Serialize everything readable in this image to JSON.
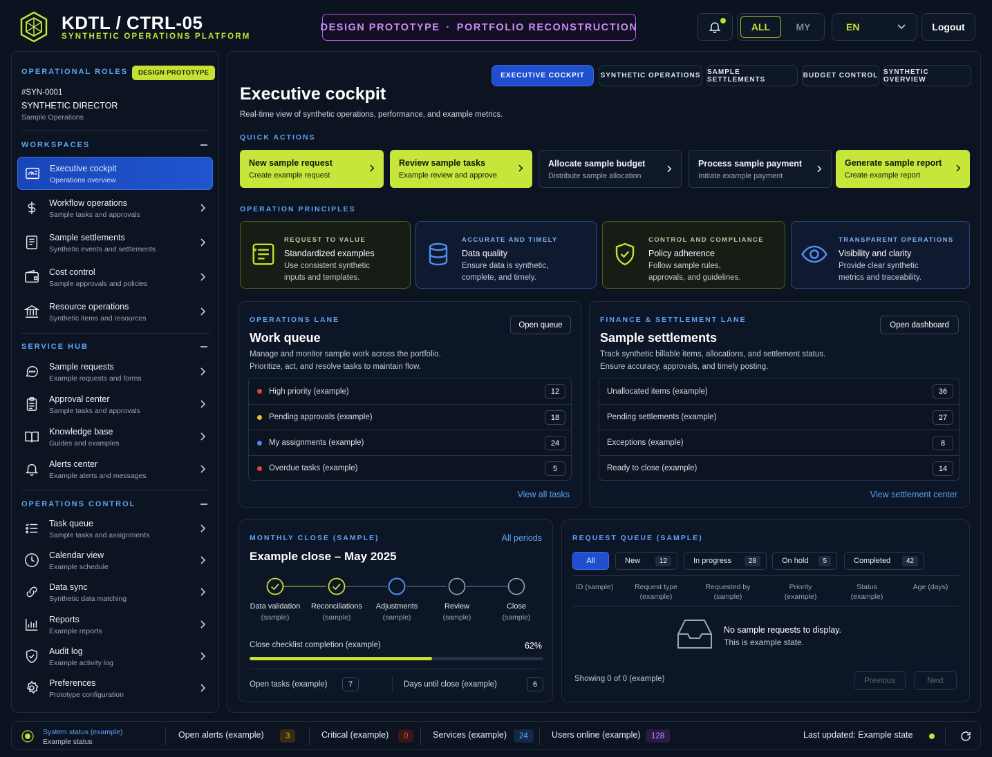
{
  "header": {
    "title": "KDTL / CTRL-05",
    "subtitle": "SYNTHETIC OPERATIONS PLATFORM",
    "banner_left": "DESIGN PROTOTYPE",
    "banner_sep": "·",
    "banner_right": "PORTFOLIO RECONSTRUCTION",
    "scope_all": "ALL",
    "scope_my": "MY",
    "language": "EN",
    "logout": "Logout"
  },
  "sidebar": {
    "roles_title": "OPERATIONAL ROLES",
    "badge": "DESIGN PROTOTYPE",
    "user_id": "#SYN-0001",
    "user_role": "SYNTHETIC DIRECTOR",
    "user_dept": "Sample Operations",
    "workspaces_title": "WORKSPACES",
    "workspaces": [
      {
        "label": "Executive cockpit",
        "sub": "Operations overview",
        "icon": "dashboard-icon"
      },
      {
        "label": "Workflow operations",
        "sub": "Sample tasks and approvals",
        "icon": "dollar-icon"
      },
      {
        "label": "Sample settlements",
        "sub": "Synthetic events and settlements",
        "icon": "document-icon"
      },
      {
        "label": "Cost control",
        "sub": "Sample approvals and policies",
        "icon": "wallet-icon"
      },
      {
        "label": "Resource operations",
        "sub": "Synthetic items and resources",
        "icon": "bank-icon"
      }
    ],
    "service_title": "SERVICE HUB",
    "service": [
      {
        "label": "Sample requests",
        "sub": "Example requests and forms",
        "icon": "chat-icon"
      },
      {
        "label": "Approval center",
        "sub": "Sample tasks and approvals",
        "icon": "clipboard-icon"
      },
      {
        "label": "Knowledge base",
        "sub": "Guides and examples",
        "icon": "book-icon"
      },
      {
        "label": "Alerts center",
        "sub": "Example alerts and messages",
        "icon": "bell-icon"
      }
    ],
    "control_title": "OPERATIONS CONTROL",
    "control": [
      {
        "label": "Task queue",
        "sub": "Sample tasks and assignments",
        "icon": "list-icon"
      },
      {
        "label": "Calendar view",
        "sub": "Example schedule",
        "icon": "clock-icon"
      },
      {
        "label": "Data sync",
        "sub": "Synthetic data matching",
        "icon": "link-icon"
      },
      {
        "label": "Reports",
        "sub": "Example reports",
        "icon": "bar-chart-icon"
      },
      {
        "label": "Audit log",
        "sub": "Example activity log",
        "icon": "shield-check-icon"
      },
      {
        "label": "Preferences",
        "sub": "Prototype configuration",
        "icon": "gear-icon"
      }
    ]
  },
  "tabs": [
    "EXECUTIVE COCKPIT",
    "SYNTHETIC OPERATIONS",
    "SAMPLE SETTLEMENTS",
    "BUDGET CONTROL",
    "SYNTHETIC OVERVIEW"
  ],
  "page": {
    "title": "Executive cockpit",
    "subtitle": "Real-time view of synthetic operations, performance, and example metrics."
  },
  "quick_actions": {
    "title": "QUICK ACTIONS",
    "items": [
      {
        "title": "New sample request",
        "sub": "Create example request"
      },
      {
        "title": "Review sample tasks",
        "sub": "Example review and approve"
      },
      {
        "title": "Allocate sample budget",
        "sub": "Distribute sample allocation"
      },
      {
        "title": "Process sample payment",
        "sub": "Initiate example payment"
      },
      {
        "title": "Generate sample report",
        "sub": "Create example report"
      }
    ]
  },
  "principles": {
    "title": "OPERATION PRINCIPLES",
    "items": [
      {
        "kicker": "REQUEST TO VALUE",
        "title": "Standardized examples",
        "desc1": "Use consistent synthetic",
        "desc2": "inputs and templates.",
        "icon": "form-icon"
      },
      {
        "kicker": "ACCURATE AND TIMELY",
        "title": "Data quality",
        "desc1": "Ensure data is synthetic,",
        "desc2": "complete, and timely.",
        "icon": "database-icon"
      },
      {
        "kicker": "CONTROL AND COMPLIANCE",
        "title": "Policy adherence",
        "desc1": "Follow sample rules,",
        "desc2": "approvals, and guidelines.",
        "icon": "shield-check-icon"
      },
      {
        "kicker": "TRANSPARENT OPERATIONS",
        "title": "Visibility and clarity",
        "desc1": "Provide clear synthetic",
        "desc2": "metrics and traceability.",
        "icon": "eye-icon"
      }
    ]
  },
  "work_queue": {
    "kicker": "OPERATIONS LANE",
    "title": "Work queue",
    "desc1": "Manage and monitor sample work across the portfolio.",
    "desc2": "Prioritize, act, and resolve tasks to maintain flow.",
    "button": "Open queue",
    "rows": [
      {
        "label": "High priority (example)",
        "count": "12",
        "color": "#e0413b"
      },
      {
        "label": "Pending approvals (example)",
        "count": "18",
        "color": "#e8c02a"
      },
      {
        "label": "My assignments (example)",
        "count": "24",
        "color": "#4a86ee"
      },
      {
        "label": "Overdue tasks (example)",
        "count": "5",
        "color": "#e0413b"
      }
    ],
    "link": "View all tasks"
  },
  "settlements": {
    "kicker": "FINANCE & SETTLEMENT LANE",
    "title": "Sample settlements",
    "desc1": "Track synthetic billable items, allocations, and settlement status.",
    "desc2": "Ensure accuracy, approvals, and timely posting.",
    "button": "Open dashboard",
    "rows": [
      {
        "label": "Unallocated items (example)",
        "count": "36"
      },
      {
        "label": "Pending settlements (example)",
        "count": "27"
      },
      {
        "label": "Exceptions (example)",
        "count": "8"
      },
      {
        "label": "Ready to close (example)",
        "count": "14"
      }
    ],
    "link": "View settlement center"
  },
  "monthly_close": {
    "kicker": "MONTHLY CLOSE (SAMPLE)",
    "link": "All periods",
    "title": "Example close – May 2025",
    "steps": [
      {
        "label": "Data validation",
        "sub": "(sample)",
        "state": "done"
      },
      {
        "label": "Reconciliations",
        "sub": "(sample)",
        "state": "done"
      },
      {
        "label": "Adjustments",
        "sub": "(sample)",
        "state": "current"
      },
      {
        "label": "Review",
        "sub": "(sample)",
        "state": "pending"
      },
      {
        "label": "Close",
        "sub": "(sample)",
        "state": "pending"
      }
    ],
    "progress_label": "Close checklist completion (example)",
    "progress_text": "62%",
    "progress_value": 0.62,
    "open_tasks_label": "Open tasks (example)",
    "open_tasks": "7",
    "days_label": "Days until close (example)",
    "days": "6"
  },
  "request_queue": {
    "kicker": "REQUEST QUEUE (SAMPLE)",
    "filters": [
      {
        "label": "All",
        "count": ""
      },
      {
        "label": "New",
        "count": "12"
      },
      {
        "label": "In progress",
        "count": "28"
      },
      {
        "label": "On hold",
        "count": "5"
      },
      {
        "label": "Completed",
        "count": "42"
      }
    ],
    "columns": [
      {
        "l1": "ID (sample)",
        "l2": ""
      },
      {
        "l1": "Request type",
        "l2": "(example)"
      },
      {
        "l1": "Requested by",
        "l2": "(sample)"
      },
      {
        "l1": "Priority",
        "l2": "(example)"
      },
      {
        "l1": "Status",
        "l2": "(example)"
      },
      {
        "l1": "Age (days)",
        "l2": ""
      }
    ],
    "empty_title": "No sample requests to display.",
    "empty_sub": "This is example state.",
    "showing": "Showing 0 of 0 (example)",
    "previous": "Previous",
    "next": "Next"
  },
  "footer": {
    "status_title": "System status (example)",
    "status_sub": "Example status",
    "open_alerts_label": "Open alerts (example)",
    "open_alerts": "3",
    "critical_label": "Critical (example)",
    "critical": "0",
    "services_label": "Services (example)",
    "services": "24",
    "users_label": "Users online (example)",
    "users": "128",
    "last_updated": "Last updated: Example state"
  },
  "colors": {
    "accent_lime": "#c6e63c",
    "accent_blue": "#1d4fcf",
    "accent_purple": "#b85ce8",
    "bg": "#0b1321"
  }
}
